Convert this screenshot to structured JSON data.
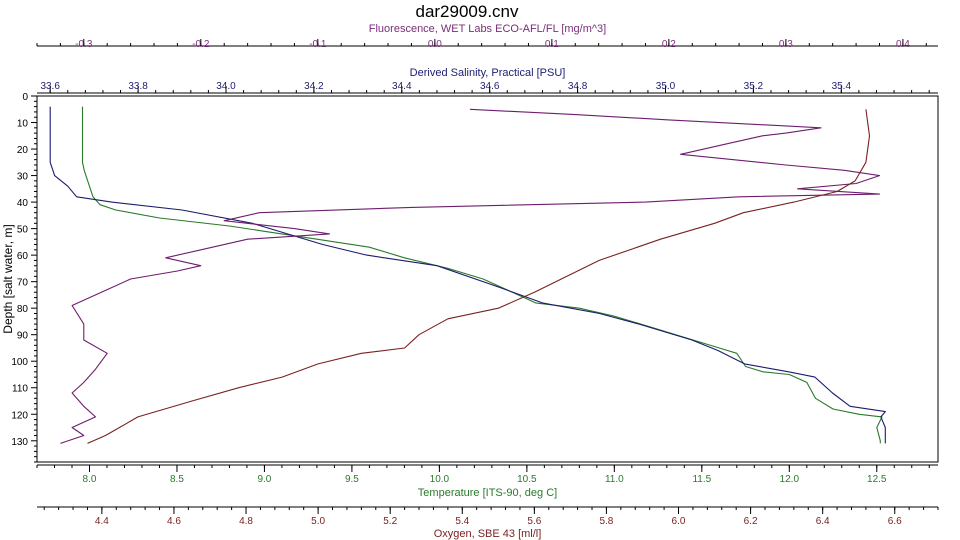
{
  "chart_data": {
    "type": "line",
    "title": "dar29009.cnv",
    "ylabel": "Depth [salt water, m]",
    "ylim": [
      0,
      138
    ],
    "y_ticks": [
      0,
      10,
      20,
      30,
      40,
      50,
      60,
      70,
      80,
      90,
      100,
      110,
      120,
      130
    ],
    "grid": false,
    "legend": "none",
    "axes": {
      "fluorescence": {
        "label": "Fluorescence, WET Labs ECO-AFL/FL [mg/m^3]",
        "position": "top-outer",
        "range": [
          -0.34,
          0.43
        ],
        "ticks": [
          -0.3,
          -0.2,
          -0.1,
          0.0,
          0.1,
          0.2,
          0.3,
          0.4
        ],
        "tick_labels": [
          "-0.3",
          "-0.2",
          "-0.1",
          "0.0",
          "0.1",
          "0.2",
          "0.3",
          "0.4"
        ],
        "color": "#7a2e7a"
      },
      "salinity": {
        "label": "Derived Salinity, Practical [PSU]",
        "position": "top-inner",
        "range": [
          33.57,
          35.62
        ],
        "ticks": [
          33.6,
          33.8,
          34.0,
          34.2,
          34.4,
          34.6,
          34.8,
          35.0,
          35.2,
          35.4
        ],
        "tick_labels": [
          "33.6",
          "33.8",
          "34.0",
          "34.2",
          "34.4",
          "34.6",
          "34.8",
          "35.0",
          "35.2",
          "35.4"
        ],
        "color": "#1c1c6e"
      },
      "temperature": {
        "label": "Temperature [ITS-90, deg C]",
        "position": "bottom-inner",
        "range": [
          7.7,
          12.85
        ],
        "ticks": [
          8.0,
          8.5,
          9.0,
          9.5,
          10.0,
          10.5,
          11.0,
          11.5,
          12.0,
          12.5
        ],
        "tick_labels": [
          "8.0",
          "8.5",
          "9.0",
          "9.5",
          "10.0",
          "10.5",
          "11.0",
          "11.5",
          "12.0",
          "12.5"
        ],
        "color": "#2a7a2a"
      },
      "oxygen": {
        "label": "Oxygen, SBE 43 [ml/l]",
        "position": "bottom-outer",
        "range": [
          4.22,
          6.72
        ],
        "ticks": [
          4.4,
          4.6,
          4.8,
          5.0,
          5.2,
          5.4,
          5.6,
          5.8,
          6.0,
          6.2,
          6.4,
          6.6
        ],
        "tick_labels": [
          "4.4",
          "4.6",
          "4.8",
          "5.0",
          "5.2",
          "5.4",
          "5.6",
          "5.8",
          "6.0",
          "6.2",
          "6.4",
          "6.6"
        ],
        "color": "#7a2222"
      }
    },
    "series": [
      {
        "axis": "temperature",
        "color": "#2a7a2a",
        "points": [
          [
            7.96,
            4
          ],
          [
            7.96,
            15
          ],
          [
            7.96,
            25
          ],
          [
            7.97,
            28
          ],
          [
            7.99,
            32
          ],
          [
            8.02,
            38
          ],
          [
            8.06,
            41
          ],
          [
            8.15,
            43
          ],
          [
            8.4,
            46
          ],
          [
            8.8,
            49
          ],
          [
            9.0,
            51
          ],
          [
            9.3,
            54
          ],
          [
            9.6,
            57
          ],
          [
            9.8,
            61
          ],
          [
            10.05,
            65
          ],
          [
            10.25,
            69
          ],
          [
            10.45,
            75
          ],
          [
            10.55,
            78
          ],
          [
            10.8,
            80
          ],
          [
            11.0,
            83
          ],
          [
            11.2,
            87
          ],
          [
            11.45,
            92
          ],
          [
            11.6,
            95
          ],
          [
            11.7,
            97
          ],
          [
            11.75,
            102
          ],
          [
            11.85,
            104
          ],
          [
            12.0,
            105
          ],
          [
            12.1,
            108
          ],
          [
            12.15,
            114
          ],
          [
            12.25,
            118
          ],
          [
            12.4,
            120
          ],
          [
            12.53,
            121
          ],
          [
            12.5,
            125
          ],
          [
            12.52,
            130
          ],
          [
            12.52,
            131
          ]
        ]
      },
      {
        "axis": "salinity",
        "color": "#1c1c6e",
        "points": [
          [
            33.6,
            4
          ],
          [
            33.6,
            15
          ],
          [
            33.6,
            25
          ],
          [
            33.61,
            30
          ],
          [
            33.64,
            34
          ],
          [
            33.66,
            38
          ],
          [
            33.74,
            40
          ],
          [
            33.9,
            43
          ],
          [
            34.06,
            48
          ],
          [
            34.14,
            52
          ],
          [
            34.22,
            56
          ],
          [
            34.32,
            60
          ],
          [
            34.48,
            64
          ],
          [
            34.62,
            72
          ],
          [
            34.72,
            78
          ],
          [
            34.85,
            82
          ],
          [
            34.94,
            86
          ],
          [
            35.06,
            92
          ],
          [
            35.12,
            96
          ],
          [
            35.18,
            101
          ],
          [
            35.28,
            104
          ],
          [
            35.34,
            106
          ],
          [
            35.38,
            112
          ],
          [
            35.42,
            117
          ],
          [
            35.5,
            119
          ],
          [
            35.49,
            121
          ],
          [
            35.5,
            125
          ],
          [
            35.5,
            131
          ]
        ]
      },
      {
        "axis": "fluorescence",
        "color": "#6e1e6e",
        "points": [
          [
            0.03,
            5
          ],
          [
            0.12,
            7
          ],
          [
            0.2,
            9
          ],
          [
            0.33,
            12
          ],
          [
            0.3,
            14
          ],
          [
            0.28,
            15
          ],
          [
            0.25,
            18
          ],
          [
            0.21,
            22
          ],
          [
            0.3,
            26
          ],
          [
            0.35,
            28
          ],
          [
            0.38,
            30
          ],
          [
            0.36,
            33
          ],
          [
            0.31,
            35
          ],
          [
            0.38,
            37
          ],
          [
            0.26,
            38
          ],
          [
            0.18,
            40
          ],
          [
            -0.02,
            42
          ],
          [
            -0.15,
            44
          ],
          [
            -0.18,
            47
          ],
          [
            -0.12,
            50
          ],
          [
            -0.09,
            52
          ],
          [
            -0.16,
            54
          ],
          [
            -0.19,
            57
          ],
          [
            -0.23,
            61
          ],
          [
            -0.2,
            64
          ],
          [
            -0.22,
            66
          ],
          [
            -0.26,
            69
          ],
          [
            -0.28,
            73
          ],
          [
            -0.31,
            79
          ],
          [
            -0.3,
            86
          ],
          [
            -0.3,
            92
          ],
          [
            -0.28,
            97
          ],
          [
            -0.29,
            103
          ],
          [
            -0.3,
            108
          ],
          [
            -0.31,
            112
          ],
          [
            -0.3,
            117
          ],
          [
            -0.29,
            121
          ],
          [
            -0.31,
            125
          ],
          [
            -0.3,
            128
          ],
          [
            -0.32,
            131
          ]
        ]
      },
      {
        "axis": "oxygen",
        "color": "#7a2222",
        "points": [
          [
            6.52,
            5
          ],
          [
            6.53,
            15
          ],
          [
            6.52,
            25
          ],
          [
            6.49,
            32
          ],
          [
            6.44,
            36
          ],
          [
            6.32,
            40
          ],
          [
            6.18,
            44
          ],
          [
            6.1,
            48
          ],
          [
            5.95,
            54
          ],
          [
            5.78,
            62
          ],
          [
            5.6,
            74
          ],
          [
            5.5,
            80
          ],
          [
            5.36,
            84
          ],
          [
            5.28,
            90
          ],
          [
            5.24,
            95
          ],
          [
            5.12,
            97
          ],
          [
            5.0,
            101
          ],
          [
            4.9,
            106
          ],
          [
            4.78,
            110
          ],
          [
            4.65,
            115
          ],
          [
            4.5,
            121
          ],
          [
            4.41,
            128
          ],
          [
            4.36,
            131
          ]
        ]
      }
    ]
  }
}
